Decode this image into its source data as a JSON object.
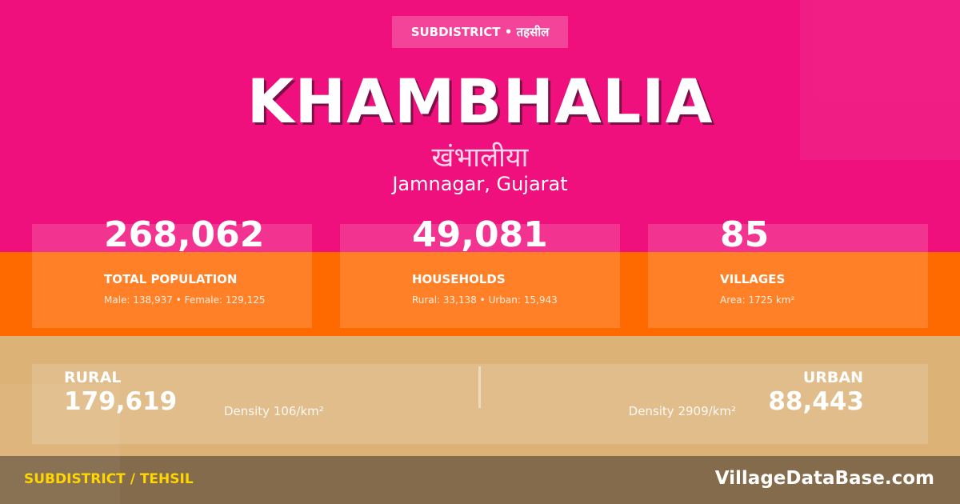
{
  "badge": "SUBDISTRICT • तहसील",
  "title": "KHAMBHALIA",
  "name_hindi": "खंभालीया",
  "location": "Jamnagar, Gujarat",
  "stats": [
    {
      "value": "268,062",
      "label": "TOTAL POPULATION",
      "detail": "Male: 138,937 • Female: 129,125"
    },
    {
      "value": "49,081",
      "label": "HOUSEHOLDS",
      "detail": "Rural: 33,138 • Urban: 15,943"
    },
    {
      "value": "85",
      "label": "VILLAGES",
      "detail": "Area: 1725 km²"
    }
  ],
  "rural": {
    "label": "RURAL",
    "value": "179,619",
    "density": "Density 106/km²"
  },
  "urban": {
    "label": "URBAN",
    "value": "88,443",
    "density": "Density 2909/km²"
  },
  "footer": {
    "category": "SUBDISTRICT / TEHSIL",
    "site": "VillageDataBase.com"
  }
}
